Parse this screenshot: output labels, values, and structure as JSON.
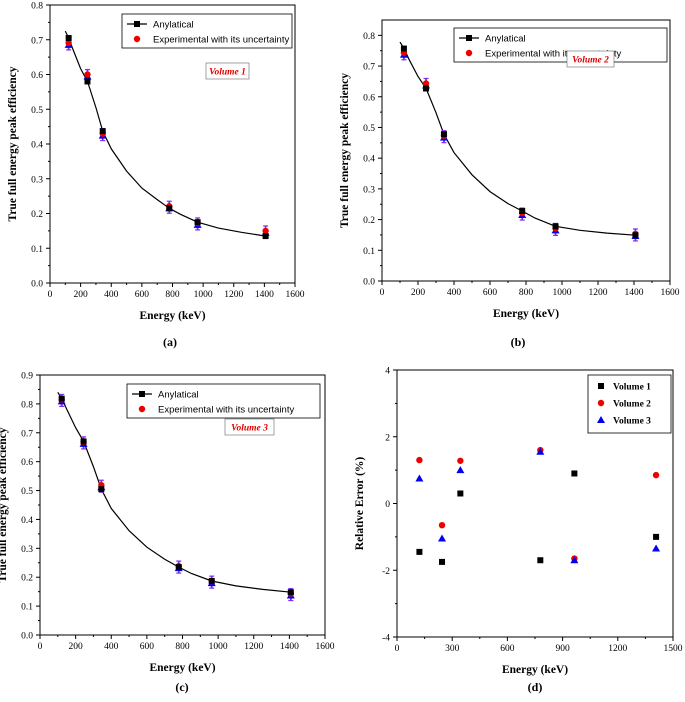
{
  "figure": {
    "panels": [
      {
        "id": "a",
        "caption": "(a)",
        "annotation": "Volume 1"
      },
      {
        "id": "b",
        "caption": "(b)",
        "annotation": "Volume 2"
      },
      {
        "id": "c",
        "caption": "(c)",
        "annotation": "Volume 3"
      },
      {
        "id": "d",
        "caption": "(d)",
        "annotation": ""
      }
    ]
  },
  "chart_data": [
    {
      "type": "line",
      "panel": "a",
      "title": "",
      "xlabel": "Energy (keV)",
      "ylabel": "True full energy peak efficiency",
      "xlim": [
        0,
        1600
      ],
      "ylim": [
        0,
        0.8
      ],
      "xticks": [
        "0",
        "200",
        "400",
        "600",
        "800",
        "1000",
        "1200",
        "1400",
        "1600"
      ],
      "yticks": [
        "0.0",
        "0.1",
        "0.2",
        "0.3",
        "0.4",
        "0.5",
        "0.6",
        "0.7",
        "0.8"
      ],
      "annotation": "Volume 1",
      "legend": [
        "Anylatical",
        "Experimental with its uncertainty"
      ],
      "x": [
        121.8,
        244.7,
        344.3,
        778.9,
        964.1,
        1408.0
      ],
      "series": [
        {
          "name": "Anylatical",
          "values": [
            0.705,
            0.58,
            0.437,
            0.215,
            0.175,
            0.135
          ]
        },
        {
          "name": "Experimental with its uncertainty",
          "values": [
            0.688,
            0.597,
            0.427,
            0.218,
            0.17,
            0.147
          ]
        }
      ],
      "curve_x": [
        100,
        122,
        150,
        200,
        245,
        300,
        344,
        400,
        500,
        600,
        700,
        779,
        850,
        964,
        1100,
        1250,
        1408
      ],
      "curve_y": [
        0.725,
        0.705,
        0.672,
        0.617,
        0.58,
        0.505,
        0.437,
        0.386,
        0.322,
        0.273,
        0.24,
        0.215,
        0.198,
        0.175,
        0.158,
        0.146,
        0.135
      ]
    },
    {
      "type": "line",
      "panel": "b",
      "title": "",
      "xlabel": "Energy (keV)",
      "ylabel": "True full energy peak efficiency",
      "xlim": [
        0,
        1600
      ],
      "ylim": [
        0,
        0.85
      ],
      "xticks": [
        "0",
        "200",
        "400",
        "600",
        "800",
        "1000",
        "1200",
        "1400",
        "1600"
      ],
      "yticks": [
        "0.0",
        "0.1",
        "0.2",
        "0.3",
        "0.4",
        "0.5",
        "0.6",
        "0.7",
        "0.8"
      ],
      "annotation": "Volume 2",
      "legend": [
        "Anylatical",
        "Experimental with its uncertainty"
      ],
      "x": [
        121.8,
        244.7,
        344.3,
        778.9,
        964.1,
        1408.0
      ],
      "series": [
        {
          "name": "Anylatical",
          "values": [
            0.757,
            0.627,
            0.478,
            0.228,
            0.178,
            0.149
          ]
        },
        {
          "name": "Experimental with its uncertainty",
          "values": [
            0.74,
            0.64,
            0.47,
            0.218,
            0.168,
            0.15
          ]
        }
      ],
      "curve_x": [
        100,
        122,
        150,
        200,
        245,
        300,
        344,
        400,
        500,
        600,
        700,
        779,
        850,
        964,
        1100,
        1250,
        1408
      ],
      "curve_y": [
        0.778,
        0.757,
        0.722,
        0.666,
        0.627,
        0.548,
        0.478,
        0.418,
        0.346,
        0.291,
        0.252,
        0.228,
        0.205,
        0.178,
        0.165,
        0.156,
        0.149
      ]
    },
    {
      "type": "line",
      "panel": "c",
      "title": "",
      "xlabel": "Energy (keV)",
      "ylabel": "True full energy peak efficiency",
      "xlim": [
        0,
        1600
      ],
      "ylim": [
        0,
        0.9
      ],
      "xticks": [
        "0",
        "200",
        "400",
        "600",
        "800",
        "1000",
        "1200",
        "1400",
        "1600"
      ],
      "yticks": [
        "0.0",
        "0.1",
        "0.2",
        "0.3",
        "0.4",
        "0.5",
        "0.6",
        "0.7",
        "0.8",
        "0.9"
      ],
      "annotation": "Volume 3",
      "legend": [
        "Anylatical",
        "Experimental with its uncertainty"
      ],
      "x": [
        121.8,
        244.7,
        344.3,
        778.9,
        964.1,
        1408.0
      ],
      "series": [
        {
          "name": "Anylatical",
          "values": [
            0.818,
            0.67,
            0.505,
            0.235,
            0.187,
            0.148
          ]
        },
        {
          "name": "Experimental with its uncertainty",
          "values": [
            0.812,
            0.665,
            0.515,
            0.235,
            0.183,
            0.14
          ]
        }
      ],
      "curve_x": [
        100,
        122,
        150,
        200,
        245,
        300,
        344,
        400,
        500,
        600,
        700,
        779,
        850,
        964,
        1100,
        1250,
        1408
      ],
      "curve_y": [
        0.84,
        0.818,
        0.782,
        0.718,
        0.67,
        0.583,
        0.505,
        0.438,
        0.361,
        0.304,
        0.262,
        0.235,
        0.213,
        0.187,
        0.17,
        0.158,
        0.148
      ]
    },
    {
      "type": "scatter",
      "panel": "d",
      "title": "",
      "xlabel": "Energy (keV)",
      "ylabel": "Relative Error (%)",
      "xlim": [
        0,
        1500
      ],
      "ylim": [
        -4,
        4
      ],
      "xticks": [
        "0",
        "300",
        "600",
        "900",
        "1200",
        "1500"
      ],
      "yticks": [
        "-4",
        "-2",
        "0",
        "2",
        "4"
      ],
      "legend": [
        "Volume 1",
        "Volume 2",
        "Volume 3"
      ],
      "x": [
        121.8,
        244.7,
        344.3,
        778.9,
        964.1,
        1408.0
      ],
      "series": [
        {
          "name": "Volume 1",
          "values": [
            -1.45,
            -1.75,
            0.3,
            -1.7,
            0.9,
            -1.0
          ]
        },
        {
          "name": "Volume 2",
          "values": [
            1.3,
            -0.65,
            1.28,
            1.6,
            -1.65,
            0.85
          ]
        },
        {
          "name": "Volume 3",
          "values": [
            0.75,
            -1.05,
            1.0,
            1.55,
            -1.7,
            -1.35
          ]
        }
      ]
    }
  ]
}
